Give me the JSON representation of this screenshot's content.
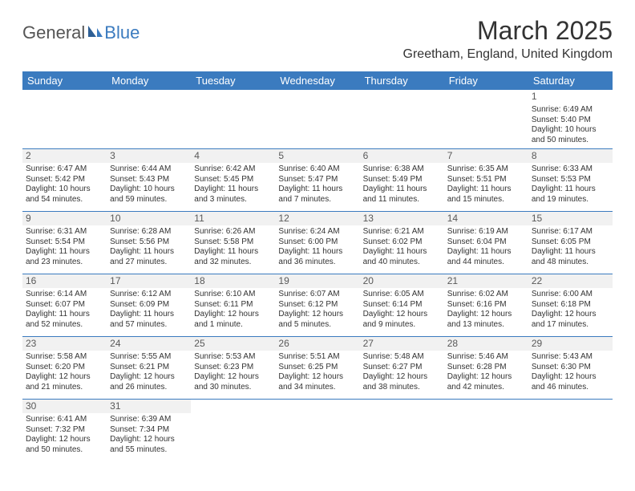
{
  "brand": {
    "part1": "General",
    "part2": "Blue"
  },
  "title": "March 2025",
  "location": "Greetham, England, United Kingdom",
  "colors": {
    "header_bg": "#3b7bbf",
    "header_text": "#ffffff",
    "border": "#3b7bbf",
    "daynum_bg": "#f1f1f1",
    "text": "#333333"
  },
  "day_headers": [
    "Sunday",
    "Monday",
    "Tuesday",
    "Wednesday",
    "Thursday",
    "Friday",
    "Saturday"
  ],
  "weeks": [
    [
      null,
      null,
      null,
      null,
      null,
      null,
      {
        "n": "1",
        "sr": "Sunrise: 6:49 AM",
        "ss": "Sunset: 5:40 PM",
        "d1": "Daylight: 10 hours",
        "d2": "and 50 minutes."
      }
    ],
    [
      {
        "n": "2",
        "sr": "Sunrise: 6:47 AM",
        "ss": "Sunset: 5:42 PM",
        "d1": "Daylight: 10 hours",
        "d2": "and 54 minutes."
      },
      {
        "n": "3",
        "sr": "Sunrise: 6:44 AM",
        "ss": "Sunset: 5:43 PM",
        "d1": "Daylight: 10 hours",
        "d2": "and 59 minutes."
      },
      {
        "n": "4",
        "sr": "Sunrise: 6:42 AM",
        "ss": "Sunset: 5:45 PM",
        "d1": "Daylight: 11 hours",
        "d2": "and 3 minutes."
      },
      {
        "n": "5",
        "sr": "Sunrise: 6:40 AM",
        "ss": "Sunset: 5:47 PM",
        "d1": "Daylight: 11 hours",
        "d2": "and 7 minutes."
      },
      {
        "n": "6",
        "sr": "Sunrise: 6:38 AM",
        "ss": "Sunset: 5:49 PM",
        "d1": "Daylight: 11 hours",
        "d2": "and 11 minutes."
      },
      {
        "n": "7",
        "sr": "Sunrise: 6:35 AM",
        "ss": "Sunset: 5:51 PM",
        "d1": "Daylight: 11 hours",
        "d2": "and 15 minutes."
      },
      {
        "n": "8",
        "sr": "Sunrise: 6:33 AM",
        "ss": "Sunset: 5:53 PM",
        "d1": "Daylight: 11 hours",
        "d2": "and 19 minutes."
      }
    ],
    [
      {
        "n": "9",
        "sr": "Sunrise: 6:31 AM",
        "ss": "Sunset: 5:54 PM",
        "d1": "Daylight: 11 hours",
        "d2": "and 23 minutes."
      },
      {
        "n": "10",
        "sr": "Sunrise: 6:28 AM",
        "ss": "Sunset: 5:56 PM",
        "d1": "Daylight: 11 hours",
        "d2": "and 27 minutes."
      },
      {
        "n": "11",
        "sr": "Sunrise: 6:26 AM",
        "ss": "Sunset: 5:58 PM",
        "d1": "Daylight: 11 hours",
        "d2": "and 32 minutes."
      },
      {
        "n": "12",
        "sr": "Sunrise: 6:24 AM",
        "ss": "Sunset: 6:00 PM",
        "d1": "Daylight: 11 hours",
        "d2": "and 36 minutes."
      },
      {
        "n": "13",
        "sr": "Sunrise: 6:21 AM",
        "ss": "Sunset: 6:02 PM",
        "d1": "Daylight: 11 hours",
        "d2": "and 40 minutes."
      },
      {
        "n": "14",
        "sr": "Sunrise: 6:19 AM",
        "ss": "Sunset: 6:04 PM",
        "d1": "Daylight: 11 hours",
        "d2": "and 44 minutes."
      },
      {
        "n": "15",
        "sr": "Sunrise: 6:17 AM",
        "ss": "Sunset: 6:05 PM",
        "d1": "Daylight: 11 hours",
        "d2": "and 48 minutes."
      }
    ],
    [
      {
        "n": "16",
        "sr": "Sunrise: 6:14 AM",
        "ss": "Sunset: 6:07 PM",
        "d1": "Daylight: 11 hours",
        "d2": "and 52 minutes."
      },
      {
        "n": "17",
        "sr": "Sunrise: 6:12 AM",
        "ss": "Sunset: 6:09 PM",
        "d1": "Daylight: 11 hours",
        "d2": "and 57 minutes."
      },
      {
        "n": "18",
        "sr": "Sunrise: 6:10 AM",
        "ss": "Sunset: 6:11 PM",
        "d1": "Daylight: 12 hours",
        "d2": "and 1 minute."
      },
      {
        "n": "19",
        "sr": "Sunrise: 6:07 AM",
        "ss": "Sunset: 6:12 PM",
        "d1": "Daylight: 12 hours",
        "d2": "and 5 minutes."
      },
      {
        "n": "20",
        "sr": "Sunrise: 6:05 AM",
        "ss": "Sunset: 6:14 PM",
        "d1": "Daylight: 12 hours",
        "d2": "and 9 minutes."
      },
      {
        "n": "21",
        "sr": "Sunrise: 6:02 AM",
        "ss": "Sunset: 6:16 PM",
        "d1": "Daylight: 12 hours",
        "d2": "and 13 minutes."
      },
      {
        "n": "22",
        "sr": "Sunrise: 6:00 AM",
        "ss": "Sunset: 6:18 PM",
        "d1": "Daylight: 12 hours",
        "d2": "and 17 minutes."
      }
    ],
    [
      {
        "n": "23",
        "sr": "Sunrise: 5:58 AM",
        "ss": "Sunset: 6:20 PM",
        "d1": "Daylight: 12 hours",
        "d2": "and 21 minutes."
      },
      {
        "n": "24",
        "sr": "Sunrise: 5:55 AM",
        "ss": "Sunset: 6:21 PM",
        "d1": "Daylight: 12 hours",
        "d2": "and 26 minutes."
      },
      {
        "n": "25",
        "sr": "Sunrise: 5:53 AM",
        "ss": "Sunset: 6:23 PM",
        "d1": "Daylight: 12 hours",
        "d2": "and 30 minutes."
      },
      {
        "n": "26",
        "sr": "Sunrise: 5:51 AM",
        "ss": "Sunset: 6:25 PM",
        "d1": "Daylight: 12 hours",
        "d2": "and 34 minutes."
      },
      {
        "n": "27",
        "sr": "Sunrise: 5:48 AM",
        "ss": "Sunset: 6:27 PM",
        "d1": "Daylight: 12 hours",
        "d2": "and 38 minutes."
      },
      {
        "n": "28",
        "sr": "Sunrise: 5:46 AM",
        "ss": "Sunset: 6:28 PM",
        "d1": "Daylight: 12 hours",
        "d2": "and 42 minutes."
      },
      {
        "n": "29",
        "sr": "Sunrise: 5:43 AM",
        "ss": "Sunset: 6:30 PM",
        "d1": "Daylight: 12 hours",
        "d2": "and 46 minutes."
      }
    ],
    [
      {
        "n": "30",
        "sr": "Sunrise: 6:41 AM",
        "ss": "Sunset: 7:32 PM",
        "d1": "Daylight: 12 hours",
        "d2": "and 50 minutes."
      },
      {
        "n": "31",
        "sr": "Sunrise: 6:39 AM",
        "ss": "Sunset: 7:34 PM",
        "d1": "Daylight: 12 hours",
        "d2": "and 55 minutes."
      },
      null,
      null,
      null,
      null,
      null
    ]
  ]
}
